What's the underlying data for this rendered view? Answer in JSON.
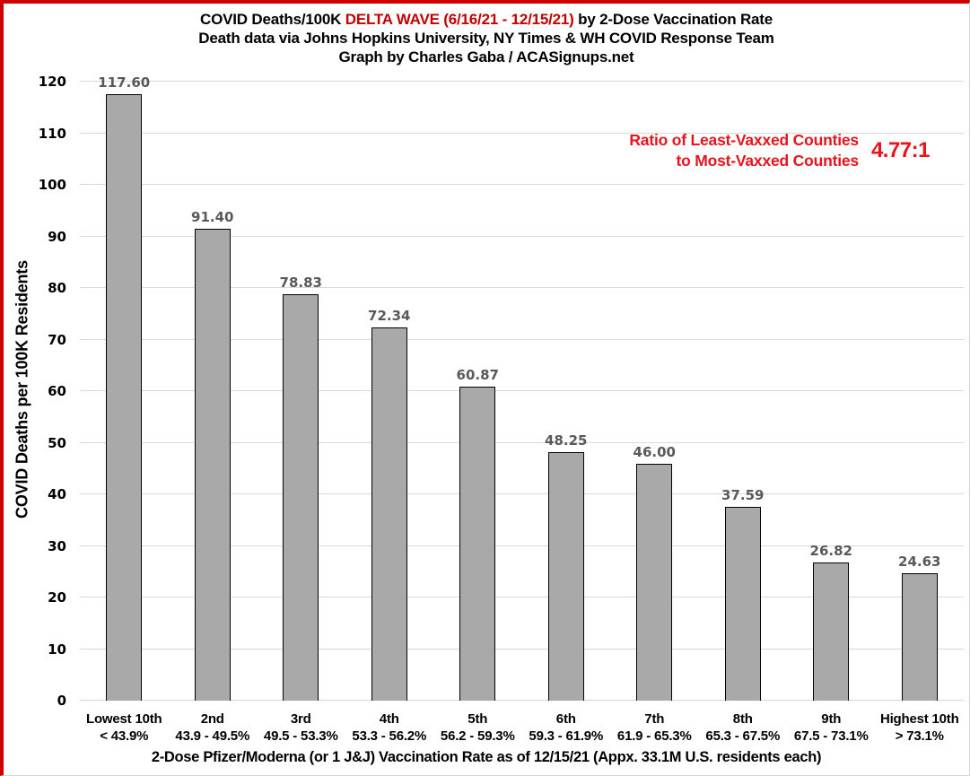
{
  "page": {
    "title_line1_part1": "COVID Deaths/100K ",
    "title_line1_red": "DELTA WAVE (6/16/21 - 12/15/21)",
    "title_line1_part2": " by 2-Dose Vaccination Rate",
    "title_line2": "Death data via Johns Hopkins University, NY Times & WH COVID Response Team",
    "title_line3": "Graph by Charles Gaba / ACASignups.net"
  },
  "annotation": {
    "line1": "Ratio of Least-Vaxxed Counties",
    "line2": "to Most-Vaxxed Counties",
    "ratio": "4.77:1"
  },
  "colors": {
    "bar_fill": "#a9a9a9",
    "bar_border": "#000000",
    "value_label": "#595959",
    "gridline": "#d9d9d9",
    "title_red": "#c00000",
    "annotation_red": "#e8131d",
    "frame_red": "#d10000"
  },
  "chart_data": {
    "type": "bar",
    "title": "COVID Deaths/100K DELTA WAVE (6/16/21 - 12/15/21) by 2-Dose Vaccination Rate",
    "subtitle1": "Death data via Johns Hopkins University, NY Times & WH COVID Response Team",
    "subtitle2": "Graph by Charles Gaba / ACASignups.net",
    "xlabel": "2-Dose Pfizer/Moderna (or 1 J&J) Vaccination Rate as of 12/15/21 (Appx. 33.1M U.S. residents each)",
    "ylabel": "COVID Deaths per 100K Residents",
    "ylim": [
      0,
      120
    ],
    "ytick_step": 10,
    "grid": true,
    "legend": false,
    "categories": [
      {
        "tier": "Lowest 10th",
        "range": "< 43.9%"
      },
      {
        "tier": "2nd",
        "range": "43.9 - 49.5%"
      },
      {
        "tier": "3rd",
        "range": "49.5 - 53.3%"
      },
      {
        "tier": "4th",
        "range": "53.3 - 56.2%"
      },
      {
        "tier": "5th",
        "range": "56.2 - 59.3%"
      },
      {
        "tier": "6th",
        "range": "59.3 - 61.9%"
      },
      {
        "tier": "7th",
        "range": "61.9 - 65.3%"
      },
      {
        "tier": "8th",
        "range": "65.3 - 67.5%"
      },
      {
        "tier": "9th",
        "range": "67.5 - 73.1%"
      },
      {
        "tier": "Highest 10th",
        "range": "> 73.1%"
      }
    ],
    "values": [
      117.6,
      91.4,
      78.83,
      72.34,
      60.87,
      48.25,
      46.0,
      37.59,
      26.82,
      24.63
    ],
    "value_labels": [
      "117.60",
      "91.40",
      "78.83",
      "72.34",
      "60.87",
      "48.25",
      "46.00",
      "37.59",
      "26.82",
      "24.63"
    ],
    "annotation": "Ratio of Least-Vaxxed Counties to Most-Vaxxed Counties 4.77:1"
  }
}
